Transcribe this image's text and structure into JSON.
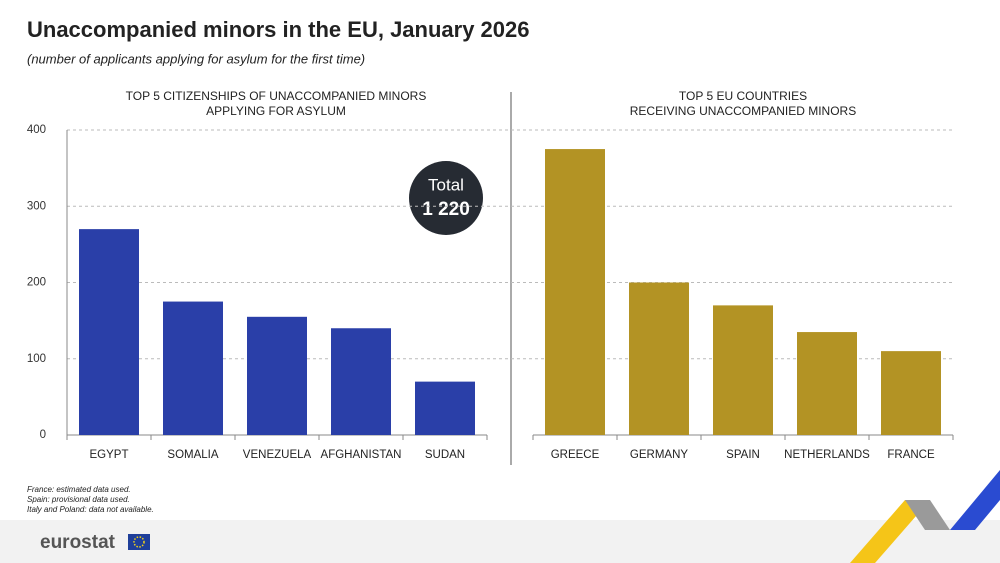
{
  "chart_data": {
    "type": "bar",
    "title": "Unaccompanied minors in the EU, January 2026",
    "subtitle": "(number of applicants applying for asylum for the first time)",
    "ylim": [
      0,
      400
    ],
    "yticks": [
      0,
      100,
      200,
      300,
      400
    ],
    "grid": true,
    "panels": [
      {
        "title": [
          "TOP 5 CITIZENSHIPS OF UNACCOMPANIED MINORS",
          "APPLYING FOR ASYLUM"
        ],
        "categories": [
          "EGYPT",
          "SOMALIA",
          "VENEZUELA",
          "AFGHANISTAN",
          "SUDAN"
        ],
        "values": [
          270,
          175,
          155,
          140,
          70
        ],
        "color": "#2a3fa8"
      },
      {
        "title": [
          "TOP 5 EU COUNTRIES",
          "RECEIVING UNACCOMPANIED MINORS"
        ],
        "categories": [
          "GREECE",
          "GERMANY",
          "SPAIN",
          "NETHERLANDS",
          "FRANCE"
        ],
        "values": [
          375,
          200,
          170,
          135,
          110
        ],
        "color": "#b39324"
      }
    ],
    "annotation": [
      "Total",
      "1 220"
    ],
    "footnotes": [
      "France: estimated data used.",
      "Spain: provisional data used.",
      "Italy and Poland: data not available."
    ],
    "logo": "eurostat"
  }
}
